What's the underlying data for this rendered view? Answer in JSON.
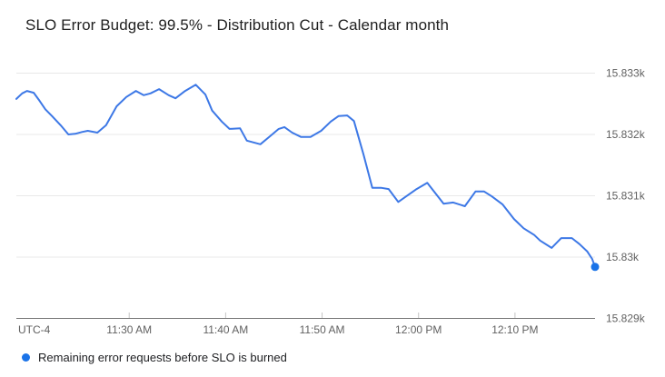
{
  "legend": {
    "label": "Remaining error requests before SLO is burned",
    "marker_color": "#1a73e8",
    "position": "bottom-left"
  },
  "colors": {
    "line": "#3d78e6",
    "end_marker": "#1a73e8",
    "grid": "#e8e8e8",
    "axis_line": "#757575",
    "tick_mark": "#c4c4c4",
    "axis_text": "#616161",
    "title_text": "#212121",
    "background": "#ffffff"
  },
  "chart_data": {
    "type": "line",
    "title": "SLO Error Budget: 99.5% - Distribution Cut - Calendar month",
    "xlabel": "",
    "ylabel": "",
    "x_axis_note": "UTC-4",
    "grid": true,
    "legend_position": "bottom-left",
    "x_unit": "minutes from chart start (~11:18 AM to ~12:18 PM)",
    "xlim": [
      0,
      60
    ],
    "ylim": [
      15829,
      15833.2
    ],
    "y_ticks": [
      {
        "value": 15833,
        "label": "15.833k"
      },
      {
        "value": 15832,
        "label": "15.832k"
      },
      {
        "value": 15831,
        "label": "15.831k"
      },
      {
        "value": 15830,
        "label": "15.83k"
      },
      {
        "value": 15829,
        "label": "15.829k"
      }
    ],
    "x_ticks": [
      {
        "minute": 11.7,
        "label": "11:30 AM"
      },
      {
        "minute": 21.7,
        "label": "11:40 AM"
      },
      {
        "minute": 31.7,
        "label": "11:50 AM"
      },
      {
        "minute": 41.7,
        "label": "12:00 PM"
      },
      {
        "minute": 51.7,
        "label": "12:10 PM"
      }
    ],
    "series": [
      {
        "name": "Remaining error requests before SLO is burned",
        "color": "#3d78e6",
        "end_marker": true,
        "points": [
          [
            0.0,
            15832.58
          ],
          [
            0.6,
            15832.67
          ],
          [
            1.1,
            15832.71
          ],
          [
            1.8,
            15832.68
          ],
          [
            2.4,
            15832.55
          ],
          [
            3.0,
            15832.41
          ],
          [
            3.7,
            15832.3
          ],
          [
            4.6,
            15832.15
          ],
          [
            5.4,
            15832.0
          ],
          [
            6.1,
            15832.01
          ],
          [
            6.8,
            15832.04
          ],
          [
            7.4,
            15832.06
          ],
          [
            8.4,
            15832.03
          ],
          [
            9.3,
            15832.15
          ],
          [
            10.4,
            15832.46
          ],
          [
            11.4,
            15832.61
          ],
          [
            12.4,
            15832.71
          ],
          [
            13.2,
            15832.64
          ],
          [
            13.9,
            15832.67
          ],
          [
            14.8,
            15832.74
          ],
          [
            15.8,
            15832.64
          ],
          [
            16.5,
            15832.59
          ],
          [
            17.5,
            15832.71
          ],
          [
            18.6,
            15832.81
          ],
          [
            19.6,
            15832.65
          ],
          [
            20.3,
            15832.39
          ],
          [
            21.3,
            15832.21
          ],
          [
            22.1,
            15832.09
          ],
          [
            23.2,
            15832.1
          ],
          [
            23.9,
            15831.9
          ],
          [
            25.3,
            15831.84
          ],
          [
            26.3,
            15831.97
          ],
          [
            27.2,
            15832.09
          ],
          [
            27.8,
            15832.12
          ],
          [
            28.6,
            15832.03
          ],
          [
            29.5,
            15831.96
          ],
          [
            30.5,
            15831.96
          ],
          [
            31.6,
            15832.06
          ],
          [
            32.6,
            15832.21
          ],
          [
            33.4,
            15832.3
          ],
          [
            34.3,
            15832.31
          ],
          [
            35.0,
            15832.22
          ],
          [
            36.0,
            15831.67
          ],
          [
            36.9,
            15831.13
          ],
          [
            37.8,
            15831.13
          ],
          [
            38.6,
            15831.11
          ],
          [
            39.6,
            15830.9
          ],
          [
            40.6,
            15831.01
          ],
          [
            41.5,
            15831.11
          ],
          [
            42.6,
            15831.21
          ],
          [
            43.4,
            15831.05
          ],
          [
            44.3,
            15830.87
          ],
          [
            45.3,
            15830.89
          ],
          [
            46.5,
            15830.83
          ],
          [
            47.6,
            15831.07
          ],
          [
            48.5,
            15831.07
          ],
          [
            49.3,
            15830.99
          ],
          [
            50.4,
            15830.86
          ],
          [
            51.6,
            15830.62
          ],
          [
            52.6,
            15830.47
          ],
          [
            53.7,
            15830.36
          ],
          [
            54.3,
            15830.27
          ],
          [
            55.5,
            15830.15
          ],
          [
            56.5,
            15830.31
          ],
          [
            57.6,
            15830.31
          ],
          [
            58.4,
            15830.21
          ],
          [
            59.2,
            15830.09
          ],
          [
            59.7,
            15829.97
          ],
          [
            60.0,
            15829.84
          ]
        ]
      }
    ]
  }
}
